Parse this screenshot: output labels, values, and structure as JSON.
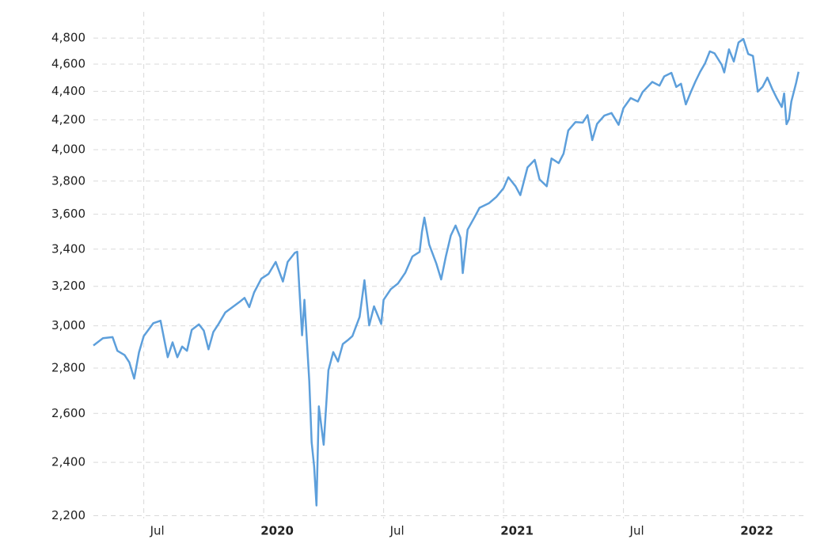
{
  "chart_data": {
    "type": "line",
    "log_scale": true,
    "grid": true,
    "xlim": [
      2019.29,
      2022.267
    ],
    "ylim": [
      2190,
      5010
    ],
    "xticks": [
      {
        "value": 2019.5,
        "label": "Jul"
      },
      {
        "value": 2020,
        "label": "2020"
      },
      {
        "value": 2020.5,
        "label": "Jul"
      },
      {
        "value": 2021,
        "label": "2021"
      },
      {
        "value": 2021.5,
        "label": "Jul"
      },
      {
        "value": 2022,
        "label": "2022"
      }
    ],
    "yticks": [
      {
        "value": 2200,
        "label": "2,200"
      },
      {
        "value": 2400,
        "label": "2,400"
      },
      {
        "value": 2600,
        "label": "2,600"
      },
      {
        "value": 2800,
        "label": "2,800"
      },
      {
        "value": 3000,
        "label": "3,000"
      },
      {
        "value": 3200,
        "label": "3,200"
      },
      {
        "value": 3400,
        "label": "3,400"
      },
      {
        "value": 3600,
        "label": "3,600"
      },
      {
        "value": 3800,
        "label": "3,800"
      },
      {
        "value": 4000,
        "label": "4,000"
      },
      {
        "value": 4200,
        "label": "4,200"
      },
      {
        "value": 4400,
        "label": "4,400"
      },
      {
        "value": 4600,
        "label": "4,600"
      },
      {
        "value": 4800,
        "label": "4,800"
      }
    ],
    "x": [
      2019.29,
      2019.33,
      2019.37,
      2019.39,
      2019.42,
      2019.44,
      2019.46,
      2019.48,
      2019.5,
      2019.54,
      2019.57,
      2019.6,
      2019.62,
      2019.64,
      2019.66,
      2019.68,
      2019.7,
      2019.73,
      2019.75,
      2019.77,
      2019.79,
      2019.81,
      2019.84,
      2019.87,
      2019.9,
      2019.92,
      2019.94,
      2019.96,
      2019.99,
      2020.02,
      2020.05,
      2020.08,
      2020.1,
      2020.13,
      2020.14,
      2020.16,
      2020.17,
      2020.19,
      2020.2,
      2020.21,
      2020.22,
      2020.23,
      2020.25,
      2020.27,
      2020.29,
      2020.31,
      2020.33,
      2020.35,
      2020.37,
      2020.4,
      2020.42,
      2020.44,
      2020.46,
      2020.49,
      2020.5,
      2020.53,
      2020.56,
      2020.59,
      2020.62,
      2020.65,
      2020.66,
      2020.67,
      2020.69,
      2020.72,
      2020.74,
      2020.76,
      2020.78,
      2020.8,
      2020.82,
      2020.83,
      2020.85,
      2020.88,
      2020.9,
      2020.94,
      2020.97,
      2021.0,
      2021.02,
      2021.05,
      2021.07,
      2021.1,
      2021.13,
      2021.15,
      2021.18,
      2021.2,
      2021.23,
      2021.25,
      2021.27,
      2021.3,
      2021.33,
      2021.35,
      2021.37,
      2021.39,
      2021.42,
      2021.45,
      2021.48,
      2021.5,
      2021.53,
      2021.56,
      2021.58,
      2021.62,
      2021.65,
      2021.67,
      2021.7,
      2021.72,
      2021.74,
      2021.76,
      2021.78,
      2021.8,
      2021.82,
      2021.84,
      2021.86,
      2021.88,
      2021.91,
      2021.92,
      2021.94,
      2021.96,
      2021.98,
      2022.0,
      2022.02,
      2022.04,
      2022.06,
      2022.08,
      2022.1,
      2022.12,
      2022.14,
      2022.16,
      2022.17,
      2022.18,
      2022.19,
      2022.2,
      2022.22,
      2022.23
    ],
    "series": [
      {
        "color": "#5d9fdb",
        "values": [
          2905,
          2940,
          2945,
          2880,
          2860,
          2826,
          2752,
          2873,
          2950,
          3013,
          3025,
          2850,
          2920,
          2850,
          2900,
          2880,
          2980,
          3007,
          2977,
          2887,
          2970,
          3006,
          3066,
          3093,
          3120,
          3140,
          3093,
          3168,
          3240,
          3265,
          3330,
          3225,
          3330,
          3380,
          3386,
          2954,
          3130,
          2741,
          2480,
          2386,
          2237,
          2630,
          2470,
          2790,
          2874,
          2830,
          2912,
          2930,
          2950,
          3044,
          3232,
          3002,
          3097,
          3009,
          3130,
          3185,
          3215,
          3271,
          3360,
          3385,
          3500,
          3580,
          3426,
          3320,
          3236,
          3363,
          3477,
          3534,
          3465,
          3270,
          3510,
          3585,
          3638,
          3666,
          3703,
          3756,
          3824,
          3768,
          3714,
          3886,
          3934,
          3811,
          3768,
          3943,
          3913,
          3974,
          4128,
          4185,
          4181,
          4232,
          4063,
          4173,
          4229,
          4247,
          4166,
          4281,
          4352,
          4327,
          4395,
          4468,
          4441,
          4509,
          4535,
          4432,
          4455,
          4307,
          4391,
          4471,
          4544,
          4605,
          4697,
          4682,
          4594,
          4538,
          4712,
          4620,
          4766,
          4793,
          4677,
          4662,
          4398,
          4432,
          4500,
          4418,
          4349,
          4289,
          4385,
          4170,
          4204,
          4328,
          4463,
          4543
        ]
      }
    ]
  }
}
